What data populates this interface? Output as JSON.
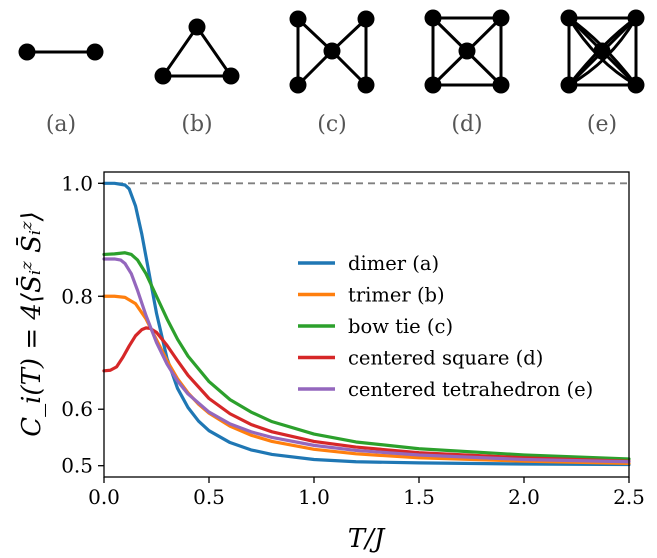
{
  "graphs": [
    {
      "label": "(a)",
      "kind": "dimer"
    },
    {
      "label": "(b)",
      "kind": "trimer"
    },
    {
      "label": "(c)",
      "kind": "bow-tie"
    },
    {
      "label": "(d)",
      "kind": "centered-square"
    },
    {
      "label": "(e)",
      "kind": "centered-tetrahedron"
    }
  ],
  "chart_data": {
    "type": "line",
    "xlabel": "T/J",
    "ylabel": "C_i(T) = 4⟨S̄ᵢᶻ S̄ᵢᶻ⟩",
    "xlim": [
      0.0,
      2.5
    ],
    "ylim": [
      0.48,
      1.02
    ],
    "xticks": [
      "0.0",
      "0.5",
      "1.0",
      "1.5",
      "2.0",
      "2.5"
    ],
    "yticks": [
      "0.5",
      "0.6",
      "0.8",
      "1.0"
    ],
    "reference_line": {
      "y": 1.0,
      "style": "dashed",
      "color": "#808080"
    },
    "legend_position": "center-right",
    "series": [
      {
        "name": "dimer (a)",
        "color": "#1f77b4",
        "x": [
          0,
          0.05,
          0.1,
          0.12,
          0.15,
          0.18,
          0.2,
          0.25,
          0.3,
          0.35,
          0.4,
          0.45,
          0.5,
          0.6,
          0.7,
          0.8,
          1.0,
          1.2,
          1.5,
          2.0,
          2.5
        ],
        "y": [
          1.0,
          1.0,
          0.997,
          0.99,
          0.96,
          0.91,
          0.87,
          0.77,
          0.69,
          0.637,
          0.603,
          0.579,
          0.562,
          0.541,
          0.528,
          0.52,
          0.511,
          0.507,
          0.505,
          0.503,
          0.502
        ]
      },
      {
        "name": "trimer (b)",
        "color": "#ff7f0e",
        "x": [
          0,
          0.05,
          0.1,
          0.15,
          0.2,
          0.25,
          0.3,
          0.35,
          0.4,
          0.45,
          0.5,
          0.6,
          0.7,
          0.8,
          1.0,
          1.2,
          1.5,
          2.0,
          2.5
        ],
        "y": [
          0.8,
          0.8,
          0.798,
          0.787,
          0.76,
          0.723,
          0.686,
          0.654,
          0.629,
          0.609,
          0.593,
          0.57,
          0.554,
          0.543,
          0.529,
          0.521,
          0.514,
          0.508,
          0.504
        ]
      },
      {
        "name": "bow tie (c)",
        "color": "#2ca02c",
        "x": [
          0,
          0.05,
          0.1,
          0.13,
          0.16,
          0.2,
          0.25,
          0.3,
          0.35,
          0.4,
          0.5,
          0.6,
          0.7,
          0.8,
          1.0,
          1.2,
          1.5,
          2.0,
          2.5
        ],
        "y": [
          0.874,
          0.875,
          0.877,
          0.874,
          0.864,
          0.84,
          0.8,
          0.76,
          0.724,
          0.694,
          0.649,
          0.617,
          0.595,
          0.578,
          0.556,
          0.542,
          0.53,
          0.519,
          0.512
        ]
      },
      {
        "name": "centered square (d)",
        "color": "#d62728",
        "x": [
          0,
          0.03,
          0.06,
          0.09,
          0.12,
          0.15,
          0.18,
          0.2,
          0.22,
          0.25,
          0.3,
          0.35,
          0.4,
          0.5,
          0.6,
          0.7,
          0.8,
          1.0,
          1.2,
          1.5,
          2.0,
          2.5
        ],
        "y": [
          0.668,
          0.669,
          0.675,
          0.692,
          0.712,
          0.73,
          0.741,
          0.744,
          0.743,
          0.736,
          0.713,
          0.686,
          0.66,
          0.619,
          0.592,
          0.573,
          0.56,
          0.543,
          0.533,
          0.523,
          0.514,
          0.508
        ]
      },
      {
        "name": "centered tetrahedron (e)",
        "color": "#9467bd",
        "x": [
          0,
          0.05,
          0.08,
          0.1,
          0.13,
          0.16,
          0.2,
          0.25,
          0.3,
          0.35,
          0.4,
          0.5,
          0.6,
          0.7,
          0.8,
          1.0,
          1.2,
          1.5,
          2.0,
          2.5
        ],
        "y": [
          0.866,
          0.866,
          0.864,
          0.858,
          0.84,
          0.81,
          0.766,
          0.718,
          0.68,
          0.65,
          0.627,
          0.595,
          0.574,
          0.56,
          0.55,
          0.536,
          0.527,
          0.519,
          0.511,
          0.507
        ]
      }
    ]
  }
}
